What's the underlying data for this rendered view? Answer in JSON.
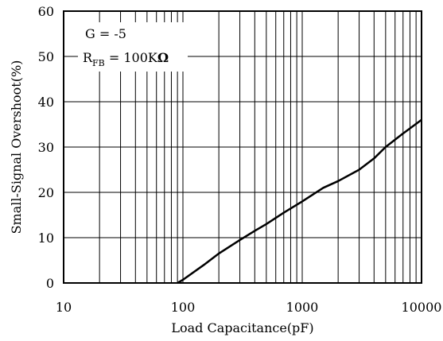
{
  "chart_data": {
    "type": "line",
    "title": "",
    "xlabel": "Load Capacitance(pF)",
    "ylabel": "Small-Signal Overshoot(%)",
    "x_scale": "log",
    "xlim": [
      10,
      10000
    ],
    "ylim": [
      0,
      60
    ],
    "x_ticks": [
      "10",
      "100",
      "1000",
      "10000"
    ],
    "y_ticks": [
      "0",
      "10",
      "20",
      "30",
      "40",
      "50",
      "60"
    ],
    "grid": true,
    "annotation": {
      "line1": "G = -5",
      "line2_main": "R",
      "line2_sub": "FB",
      "line2_rest": " = 100K",
      "line2_unit": "Ω"
    },
    "series": [
      {
        "color": "#000000",
        "x": [
          90,
          100,
          150,
          200,
          300,
          400,
          500,
          700,
          1000,
          1500,
          2000,
          3000,
          4000,
          5000,
          7000,
          10000
        ],
        "y": [
          0,
          0.7,
          4,
          6.5,
          9.5,
          11.5,
          13,
          15.5,
          18,
          21,
          22.5,
          25,
          27.5,
          30,
          33,
          36
        ]
      }
    ]
  }
}
